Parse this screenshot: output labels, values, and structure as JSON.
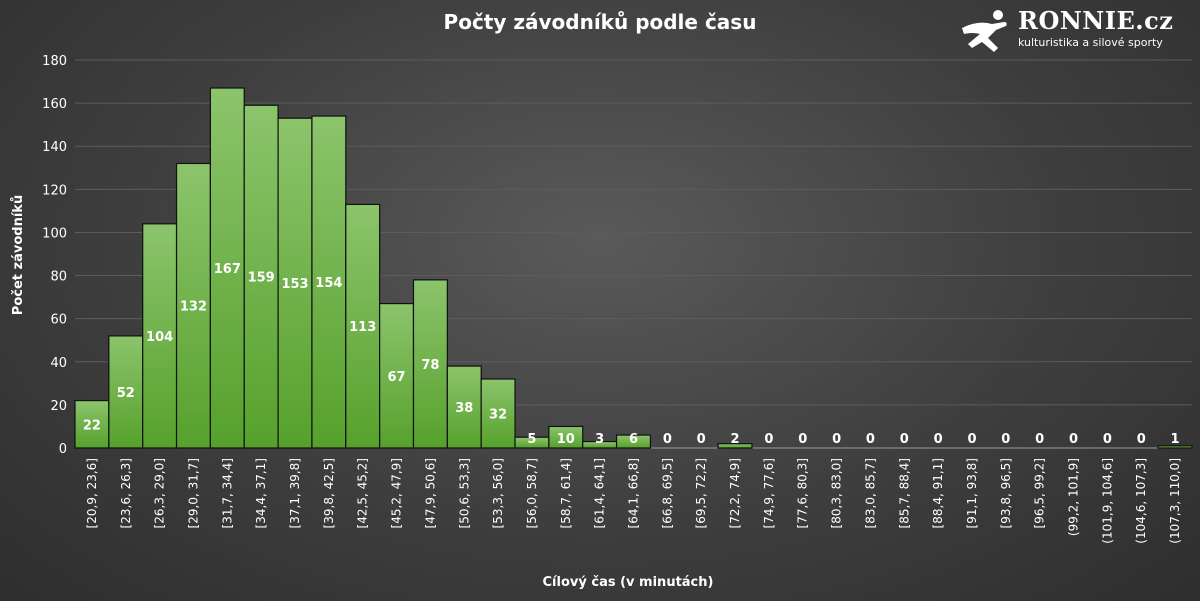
{
  "chart_data": {
    "type": "bar",
    "title": "Počty závodníků podle času",
    "xlabel": "Cílový čas (v minutách)",
    "ylabel": "Počet závodníků",
    "ylim": [
      0,
      180
    ],
    "yticks": [
      0,
      20,
      40,
      60,
      80,
      100,
      120,
      140,
      160,
      180
    ],
    "grid": true,
    "bar_color": "#6db33f",
    "categories": [
      "[20,9, 23,6]",
      "[23,6, 26,3]",
      "[26,3, 29,0]",
      "[29,0, 31,7]",
      "[31,7, 34,4]",
      "[34,4, 37,1]",
      "[37,1, 39,8]",
      "[39,8, 42,5]",
      "[42,5, 45,2]",
      "[45,2, 47,9]",
      "[47,9, 50,6]",
      "[50,6, 53,3]",
      "[53,3, 56,0]",
      "[56,0, 58,7]",
      "[58,7, 61,4]",
      "[61,4, 64,1]",
      "[64,1, 66,8]",
      "[66,8, 69,5]",
      "[69,5, 72,2]",
      "[72,2, 74,9]",
      "[74,9, 77,6]",
      "[77,6, 80,3]",
      "[80,3, 83,0]",
      "[83,0, 85,7]",
      "[85,7, 88,4]",
      "[88,4, 91,1]",
      "[91,1, 93,8]",
      "[93,8, 96,5]",
      "[96,5, 99,2]",
      "(99,2, 101,9]",
      "(101,9, 104,6]",
      "(104,6, 107,3]",
      "(107,3, 110,0]"
    ],
    "values": [
      22,
      52,
      104,
      132,
      167,
      159,
      153,
      154,
      113,
      67,
      78,
      38,
      32,
      5,
      10,
      3,
      6,
      0,
      0,
      2,
      0,
      0,
      0,
      0,
      0,
      0,
      0,
      0,
      0,
      0,
      0,
      0,
      1
    ]
  },
  "logo": {
    "name": "RONNIE.cz",
    "tagline": "kulturistika a silové sporty"
  }
}
